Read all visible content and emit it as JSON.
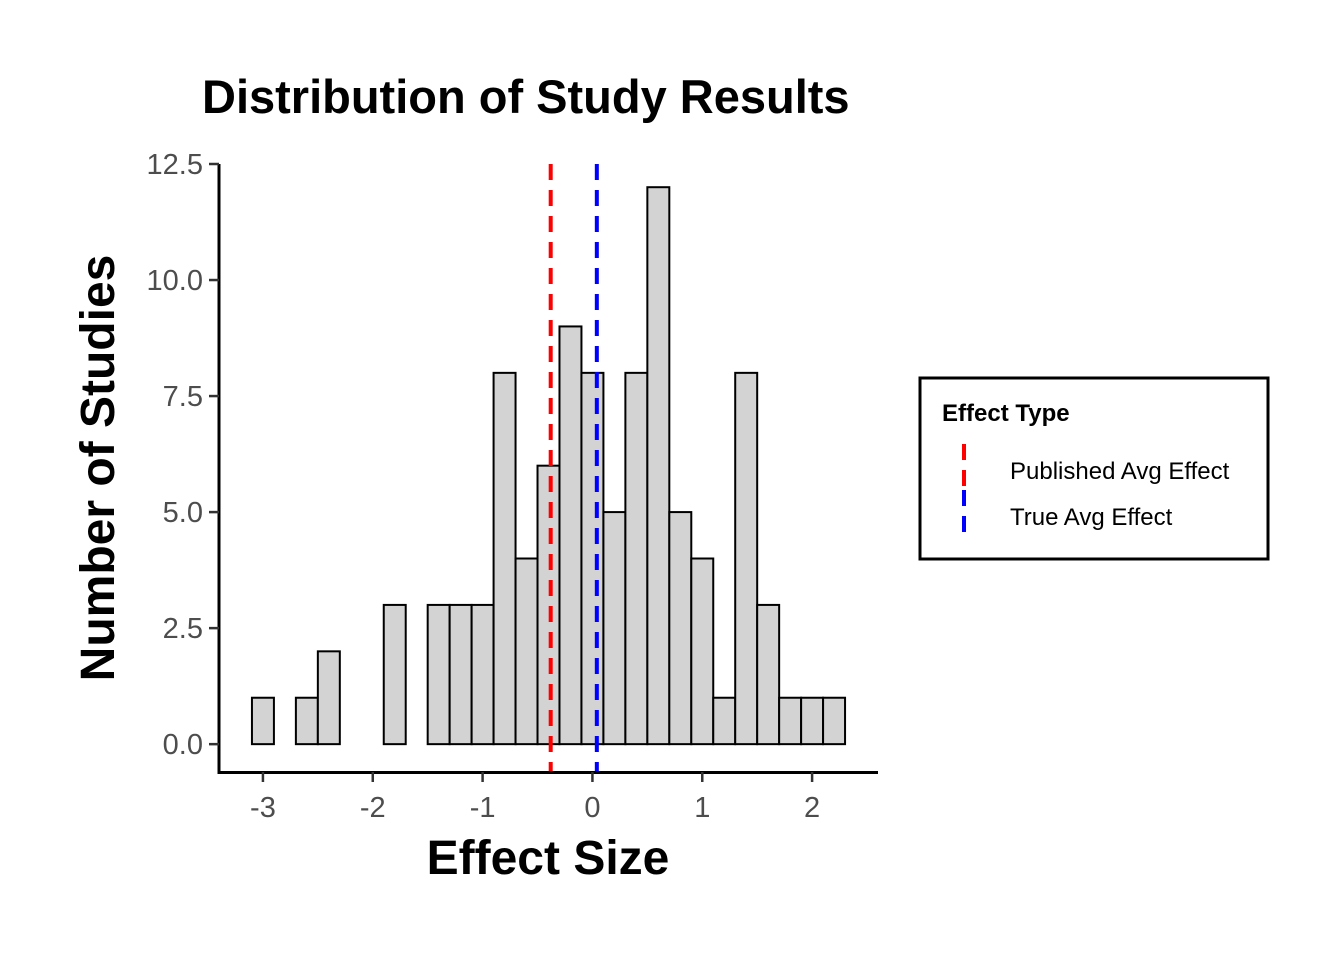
{
  "chart_data": {
    "type": "bar",
    "title": "Distribution of Study Results",
    "xlabel": "Effect Size",
    "ylabel": "Number of Studies",
    "xlim": [
      -3.4,
      2.6
    ],
    "ylim": [
      -0.6,
      12.5
    ],
    "x_ticks": [
      -3,
      -2,
      -1,
      0,
      1,
      2
    ],
    "x_tick_labels": [
      "-3",
      "-2",
      "-1",
      "0",
      "1",
      "2"
    ],
    "y_ticks": [
      0,
      2.5,
      5,
      7.5,
      10,
      12.5
    ],
    "y_tick_labels": [
      "0.0",
      "2.5",
      "5.0",
      "7.5",
      "10.0",
      "12.5"
    ],
    "bin_width": 0.2,
    "bin_start": -3.1,
    "bins": [
      {
        "x0": -3.1,
        "x1": -2.9,
        "count": 1
      },
      {
        "x0": -2.9,
        "x1": -2.7,
        "count": 0
      },
      {
        "x0": -2.7,
        "x1": -2.5,
        "count": 1
      },
      {
        "x0": -2.5,
        "x1": -2.3,
        "count": 2
      },
      {
        "x0": -2.3,
        "x1": -2.1,
        "count": 0
      },
      {
        "x0": -2.1,
        "x1": -1.9,
        "count": 0
      },
      {
        "x0": -1.9,
        "x1": -1.7,
        "count": 3
      },
      {
        "x0": -1.7,
        "x1": -1.5,
        "count": 0
      },
      {
        "x0": -1.5,
        "x1": -1.3,
        "count": 3
      },
      {
        "x0": -1.3,
        "x1": -1.1,
        "count": 3
      },
      {
        "x0": -1.1,
        "x1": -0.9,
        "count": 3
      },
      {
        "x0": -0.9,
        "x1": -0.7,
        "count": 8
      },
      {
        "x0": -0.7,
        "x1": -0.5,
        "count": 4
      },
      {
        "x0": -0.5,
        "x1": -0.3,
        "count": 6
      },
      {
        "x0": -0.3,
        "x1": -0.1,
        "count": 9
      },
      {
        "x0": -0.1,
        "x1": 0.1,
        "count": 8
      },
      {
        "x0": 0.1,
        "x1": 0.3,
        "count": 5
      },
      {
        "x0": 0.3,
        "x1": 0.5,
        "count": 8
      },
      {
        "x0": 0.5,
        "x1": 0.7,
        "count": 12
      },
      {
        "x0": 0.7,
        "x1": 0.9,
        "count": 5
      },
      {
        "x0": 0.9,
        "x1": 1.1,
        "count": 4
      },
      {
        "x0": 1.1,
        "x1": 1.3,
        "count": 1
      },
      {
        "x0": 1.3,
        "x1": 1.5,
        "count": 8
      },
      {
        "x0": 1.5,
        "x1": 1.7,
        "count": 3
      },
      {
        "x0": 1.7,
        "x1": 1.9,
        "count": 1
      },
      {
        "x0": 1.9,
        "x1": 2.1,
        "count": 1
      },
      {
        "x0": 2.1,
        "x1": 2.3,
        "count": 1
      }
    ],
    "bar_fill": "#d3d3d3",
    "bar_stroke": "#000000",
    "reference_lines": [
      {
        "name": "Published Avg Effect",
        "x": -0.38,
        "color": "#ff0000",
        "style": "dashed"
      },
      {
        "name": "True Avg Effect",
        "x": 0.04,
        "color": "#0000ff",
        "style": "dashed"
      }
    ],
    "legend": {
      "title": "Effect Type",
      "position": "right",
      "entries": [
        "Published Avg Effect",
        "True Avg Effect"
      ]
    },
    "grid": false
  }
}
